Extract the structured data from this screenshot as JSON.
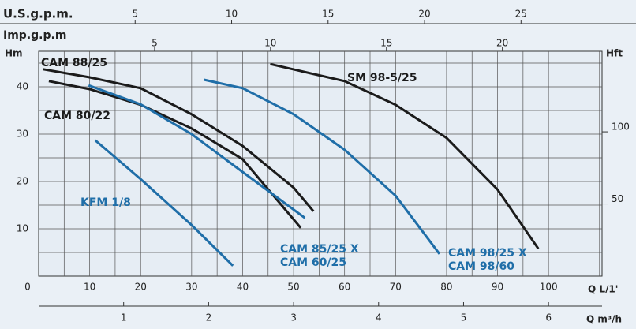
{
  "chart_data": {
    "type": "line",
    "y_label": "Hm",
    "y2_label": "Hft",
    "x_label": "Q  L/1'",
    "x2_label": "Q  m³/h",
    "x3_label": "U.S.g.p.m.",
    "x4_label": "Imp.g.p.m",
    "xlim": [
      0,
      110.5
    ],
    "xticks": [
      0,
      10,
      20,
      30,
      40,
      50,
      60,
      70,
      80,
      90,
      100
    ],
    "xgrid": [
      5,
      10,
      15,
      20,
      25,
      30,
      35,
      40,
      45,
      50,
      55,
      60,
      65,
      70,
      75,
      80,
      85,
      90,
      95,
      100,
      105,
      110
    ],
    "ylim": [
      0,
      47.5
    ],
    "yticks": [
      10,
      20,
      30,
      40
    ],
    "ygrid": [
      5,
      10,
      15,
      20,
      25,
      30,
      35,
      40,
      45
    ],
    "x2lim": [
      0,
      6.63
    ],
    "x2ticks": [
      1,
      2,
      3,
      4,
      5,
      6
    ],
    "x3lim": [
      0,
      29.2
    ],
    "x3ticks": [
      5,
      10,
      15,
      20,
      25
    ],
    "x4lim": [
      0,
      24.3
    ],
    "x4ticks": [
      5,
      10,
      15,
      20
    ],
    "y2lim": [
      0,
      155.8
    ],
    "y2ticks": [
      50,
      100
    ],
    "grid": true,
    "series": [
      {
        "names": [
          "CAM 88/25"
        ],
        "color": "#1b1b1b",
        "x": [
          0.9,
          10,
          20,
          30,
          40,
          50,
          53.9
        ],
        "values": [
          43.7,
          42,
          39.7,
          34.2,
          27.5,
          18.7,
          13.7
        ]
      },
      {
        "names": [
          "CAM 80/22"
        ],
        "color": "#1b1b1b",
        "x": [
          2,
          10,
          20,
          30,
          40,
          51.4
        ],
        "values": [
          41.2,
          39.5,
          36.2,
          31.2,
          24.7,
          10.2
        ]
      },
      {
        "names": [
          "CAM 85/25 X",
          "CAM 60/25"
        ],
        "color": "#1f6ea8",
        "x": [
          9.8,
          20,
          30,
          40,
          52.2
        ],
        "values": [
          40.3,
          36.3,
          30,
          22,
          12.3
        ]
      },
      {
        "names": [
          "KFM 1/8"
        ],
        "color": "#1f6ea8",
        "x": [
          11.1,
          20,
          30,
          38.1
        ],
        "values": [
          28.7,
          20.5,
          10.8,
          2.2
        ]
      },
      {
        "names": [
          "CAM 98/25 X",
          "CAM 98/60"
        ],
        "color": "#1f6ea8",
        "x": [
          32.4,
          40,
          50,
          60,
          70,
          78.6
        ],
        "values": [
          41.5,
          39.7,
          34.2,
          26.7,
          17,
          4.7
        ]
      },
      {
        "names": [
          "SM 98-5/25"
        ],
        "color": "#1b1b1b",
        "x": [
          45.4,
          60,
          70,
          80,
          90,
          98
        ],
        "values": [
          44.8,
          41.2,
          36.2,
          29.2,
          18.3,
          5.8
        ]
      }
    ]
  }
}
